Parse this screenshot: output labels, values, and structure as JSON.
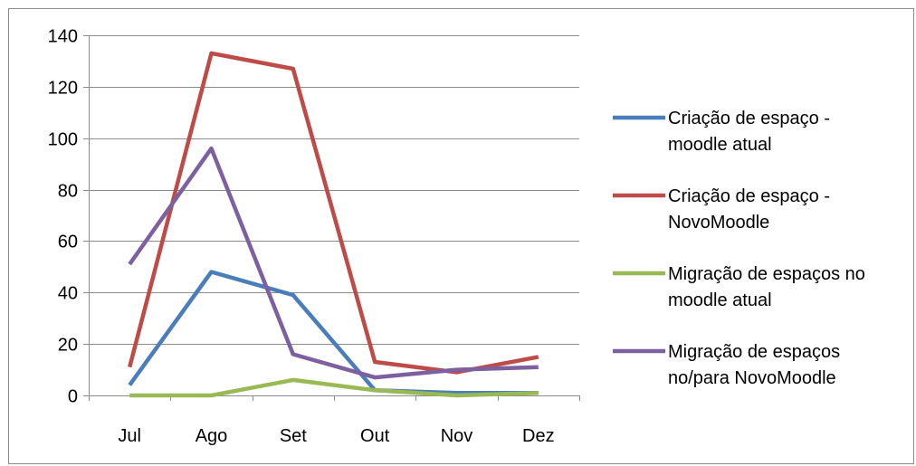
{
  "chart_data": {
    "type": "line",
    "categories": [
      "Jul",
      "Ago",
      "Set",
      "Out",
      "Nov",
      "Dez"
    ],
    "ylim": [
      0,
      140
    ],
    "yticks": [
      0,
      20,
      40,
      60,
      80,
      100,
      120,
      140
    ],
    "grid": true,
    "legend_position": "right",
    "title": "",
    "xlabel": "",
    "ylabel": "",
    "series": [
      {
        "name": "Criação de espaço - moodle atual",
        "legend_lines": [
          "Criação de espaço -",
          "moodle atual"
        ],
        "color": "#4a7ebb",
        "values": [
          4,
          48,
          39,
          2,
          1,
          1
        ]
      },
      {
        "name": "Criação de espaço - NovoMoodle",
        "legend_lines": [
          "Criação de espaço -",
          "NovoMoodle"
        ],
        "color": "#be4b48",
        "values": [
          11,
          133,
          127,
          13,
          9,
          15
        ]
      },
      {
        "name": "Migração de espaços no moodle atual",
        "legend_lines": [
          "Migração de espaços no",
          "moodle atual"
        ],
        "color": "#98b954",
        "values": [
          0,
          0,
          6,
          2,
          0,
          1
        ]
      },
      {
        "name": "Migração de espaços no/para NovoMoodle",
        "legend_lines": [
          "Migração de espaços",
          "no/para NovoMoodle"
        ],
        "color": "#7d60a0",
        "values": [
          51,
          96,
          16,
          7,
          10,
          11
        ]
      }
    ]
  }
}
